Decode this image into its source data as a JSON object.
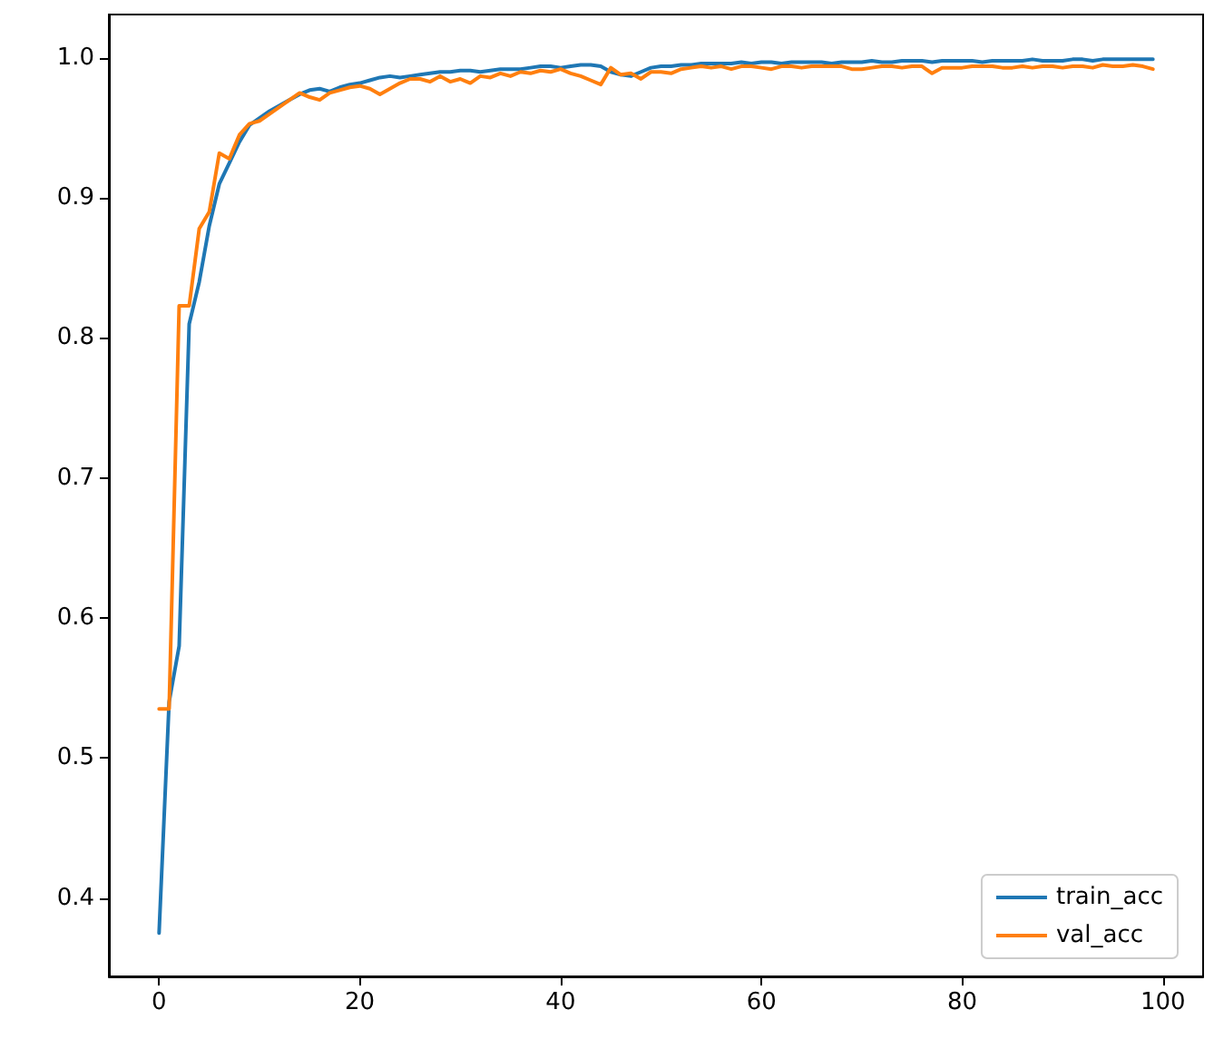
{
  "chart_data": {
    "type": "line",
    "x": [
      0,
      1,
      2,
      3,
      4,
      5,
      6,
      7,
      8,
      9,
      10,
      11,
      12,
      13,
      14,
      15,
      16,
      17,
      18,
      19,
      20,
      21,
      22,
      23,
      24,
      25,
      26,
      27,
      28,
      29,
      30,
      31,
      32,
      33,
      34,
      35,
      36,
      37,
      38,
      39,
      40,
      41,
      42,
      43,
      44,
      45,
      46,
      47,
      48,
      49,
      50,
      51,
      52,
      53,
      54,
      55,
      56,
      57,
      58,
      59,
      60,
      61,
      62,
      63,
      64,
      65,
      66,
      67,
      68,
      69,
      70,
      71,
      72,
      73,
      74,
      75,
      76,
      77,
      78,
      79,
      80,
      81,
      82,
      83,
      84,
      85,
      86,
      87,
      88,
      89,
      90,
      91,
      92,
      93,
      94,
      95,
      96,
      97,
      98,
      99
    ],
    "series": [
      {
        "name": "train_acc",
        "color": "#1f77b4",
        "values": [
          0.375,
          0.54,
          0.58,
          0.81,
          0.84,
          0.88,
          0.91,
          0.925,
          0.94,
          0.952,
          0.957,
          0.962,
          0.966,
          0.97,
          0.974,
          0.977,
          0.978,
          0.976,
          0.979,
          0.981,
          0.982,
          0.984,
          0.986,
          0.987,
          0.986,
          0.987,
          0.988,
          0.989,
          0.99,
          0.99,
          0.991,
          0.991,
          0.99,
          0.991,
          0.992,
          0.992,
          0.992,
          0.993,
          0.994,
          0.994,
          0.993,
          0.994,
          0.995,
          0.995,
          0.994,
          0.99,
          0.988,
          0.987,
          0.99,
          0.993,
          0.994,
          0.994,
          0.995,
          0.995,
          0.996,
          0.996,
          0.996,
          0.996,
          0.997,
          0.996,
          0.997,
          0.997,
          0.996,
          0.997,
          0.997,
          0.997,
          0.997,
          0.996,
          0.997,
          0.997,
          0.997,
          0.998,
          0.997,
          0.997,
          0.998,
          0.998,
          0.998,
          0.997,
          0.998,
          0.998,
          0.998,
          0.998,
          0.997,
          0.998,
          0.998,
          0.998,
          0.998,
          0.999,
          0.998,
          0.998,
          0.998,
          0.999,
          0.999,
          0.998,
          0.999,
          0.999,
          0.999,
          0.999,
          0.999,
          0.999
        ]
      },
      {
        "name": "val_acc",
        "color": "#ff7f0e",
        "values": [
          0.535,
          0.535,
          0.823,
          0.823,
          0.878,
          0.89,
          0.932,
          0.928,
          0.945,
          0.953,
          0.955,
          0.96,
          0.965,
          0.97,
          0.975,
          0.972,
          0.97,
          0.975,
          0.977,
          0.979,
          0.98,
          0.978,
          0.974,
          0.978,
          0.982,
          0.985,
          0.985,
          0.983,
          0.987,
          0.983,
          0.985,
          0.982,
          0.987,
          0.986,
          0.989,
          0.987,
          0.99,
          0.989,
          0.991,
          0.99,
          0.992,
          0.989,
          0.987,
          0.984,
          0.981,
          0.993,
          0.988,
          0.989,
          0.985,
          0.99,
          0.99,
          0.989,
          0.992,
          0.993,
          0.994,
          0.993,
          0.994,
          0.992,
          0.994,
          0.994,
          0.993,
          0.992,
          0.994,
          0.994,
          0.993,
          0.994,
          0.994,
          0.994,
          0.994,
          0.992,
          0.992,
          0.993,
          0.994,
          0.994,
          0.993,
          0.994,
          0.994,
          0.989,
          0.993,
          0.993,
          0.993,
          0.994,
          0.994,
          0.994,
          0.993,
          0.993,
          0.994,
          0.993,
          0.994,
          0.994,
          0.993,
          0.994,
          0.994,
          0.993,
          0.995,
          0.994,
          0.994,
          0.995,
          0.994,
          0.992
        ]
      }
    ],
    "xlim": [
      -5,
      104
    ],
    "xticks": [
      0,
      20,
      40,
      60,
      80,
      100
    ],
    "ylim": [
      0.344,
      1.031
    ],
    "yticks": [
      0.4,
      0.5,
      0.6,
      0.7,
      0.8,
      0.9,
      {
        "value": 1,
        "label": "1.0"
      }
    ],
    "legend": "bottom right",
    "grid": false,
    "marker": "none",
    "line_style": "solid"
  }
}
